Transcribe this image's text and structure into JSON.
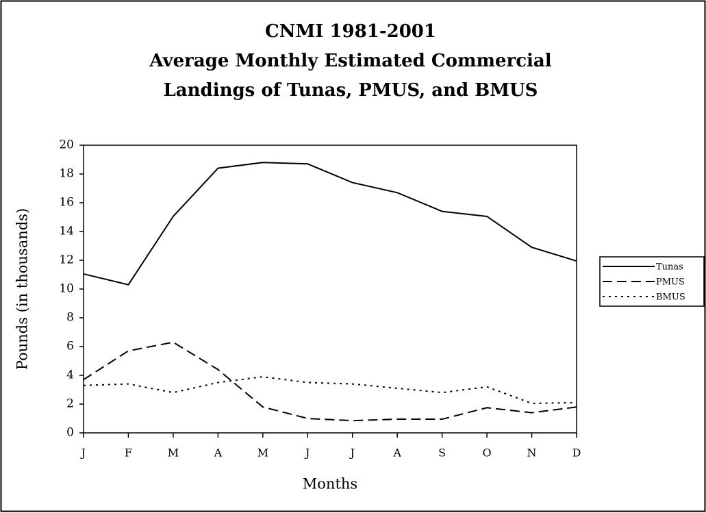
{
  "chart_data": {
    "type": "line",
    "title": [
      "CNMI 1981-2001",
      "Average Monthly Estimated Commercial",
      "Landings of Tunas, PMUS, and BMUS"
    ],
    "xlabel": "Months",
    "ylabel": "Pounds (in thousands)",
    "categories": [
      "J",
      "F",
      "M",
      "A",
      "M",
      "J",
      "J",
      "A",
      "S",
      "O",
      "N",
      "D"
    ],
    "series": [
      {
        "name": "Tunas",
        "color": "#000000",
        "style": "solid",
        "values": [
          11.05,
          10.3,
          15.05,
          18.4,
          18.8,
          18.7,
          17.4,
          16.7,
          15.4,
          15.05,
          12.9,
          11.95
        ]
      },
      {
        "name": "PMUS",
        "color": "#000000",
        "style": "dashed",
        "values": [
          3.7,
          5.7,
          6.3,
          4.4,
          1.8,
          1.0,
          0.85,
          0.95,
          0.95,
          1.75,
          1.4,
          1.8
        ]
      },
      {
        "name": "BMUS",
        "color": "#000000",
        "style": "dotted",
        "values": [
          3.3,
          3.4,
          2.8,
          3.5,
          3.9,
          3.5,
          3.4,
          3.1,
          2.8,
          3.2,
          2.05,
          2.1
        ]
      }
    ],
    "ylim": [
      0,
      20
    ],
    "yticks": [
      0,
      2,
      4,
      6,
      8,
      10,
      12,
      14,
      16,
      18,
      20
    ],
    "grid": false,
    "legend": "right"
  }
}
